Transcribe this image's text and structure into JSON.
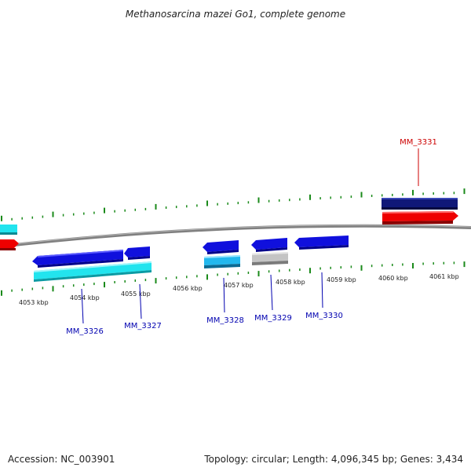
{
  "title": "Methanosarcina mazei Go1, complete genome",
  "footer": {
    "accession": "Accession: NC_003901",
    "summary": "Topology: circular; Length: 4,096,345 bp; Genes: 3,434"
  },
  "colors": {
    "backbone": "#8c8c8c",
    "tick": "#1a8a1a",
    "forward_label": "#cc0000",
    "reverse_label": "#0000b0",
    "gene_blue": "#1010dd",
    "gene_cyan": "#22e4ee",
    "gene_navy": "#101878",
    "gene_red": "#ee0000",
    "gene_gray": "#bdbdbd"
  },
  "scale": {
    "unit": "kbp",
    "labels": [
      "4053 kbp",
      "4054 kbp",
      "4055 kbp",
      "4056 kbp",
      "4057 kbp",
      "4058 kbp",
      "4059 kbp",
      "4060 kbp",
      "4061 kbp"
    ]
  },
  "genes": [
    {
      "id": "MM_3326",
      "label": "MM_3326",
      "strand": "reverse"
    },
    {
      "id": "MM_3327",
      "label": "MM_3327",
      "strand": "reverse"
    },
    {
      "id": "MM_3328",
      "label": "MM_3328",
      "strand": "reverse"
    },
    {
      "id": "MM_3329",
      "label": "MM_3329",
      "strand": "reverse"
    },
    {
      "id": "MM_3330",
      "label": "MM_3330",
      "strand": "reverse"
    },
    {
      "id": "MM_3331",
      "label": "MM_3331",
      "strand": "forward"
    }
  ]
}
